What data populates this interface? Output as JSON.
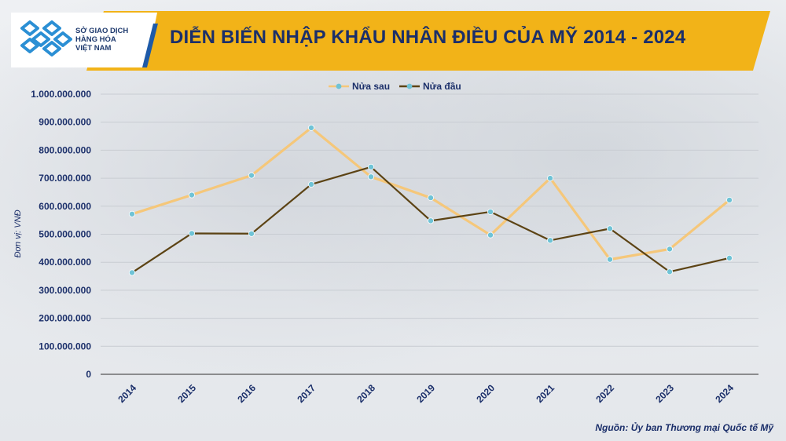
{
  "header": {
    "logo_lines": [
      "SỞ GIAO DỊCH",
      "HÀNG HÓA",
      "VIỆT NAM"
    ],
    "title": "DIỄN BIẾN NHẬP KHẨU NHÂN ĐIỀU CỦA MỸ 2014 - 2024"
  },
  "footer": {
    "source": "Nguồn: Ủy ban Thương mại Quốc tế Mỹ"
  },
  "colors": {
    "header_bg": "#f2b318",
    "title": "#1b2f6a",
    "series_nua_sau": "#f5c77a",
    "series_nua_dau": "#5c4314",
    "marker": "#6fc3d6"
  },
  "chart_data": {
    "type": "line",
    "title": "DIỄN BIẾN NHẬP KHẨU NHÂN ĐIỀU CỦA MỸ 2014 - 2024",
    "xlabel": "",
    "ylabel": "Đơn vị: VNĐ",
    "categories": [
      "2014",
      "2015",
      "2016",
      "2017",
      "2018",
      "2019",
      "2020",
      "2021",
      "2022",
      "2023",
      "2024"
    ],
    "ylim": [
      0,
      1000000000
    ],
    "yticks": [
      "0",
      "100.000.000",
      "200.000.000",
      "300.000.000",
      "400.000.000",
      "500.000.000",
      "600.000.000",
      "700.000.000",
      "800.000.000",
      "900.000.000",
      "1.000.000.000"
    ],
    "grid": true,
    "legend_position": "top-center",
    "series": [
      {
        "name": "Nửa sau",
        "values": [
          572000000,
          640000000,
          710000000,
          880000000,
          705000000,
          630000000,
          497000000,
          700000000,
          410000000,
          447000000,
          622000000
        ]
      },
      {
        "name": "Nửa đầu",
        "values": [
          363000000,
          503000000,
          502000000,
          678000000,
          740000000,
          548000000,
          580000000,
          478000000,
          520000000,
          366000000,
          415000000
        ]
      }
    ]
  }
}
